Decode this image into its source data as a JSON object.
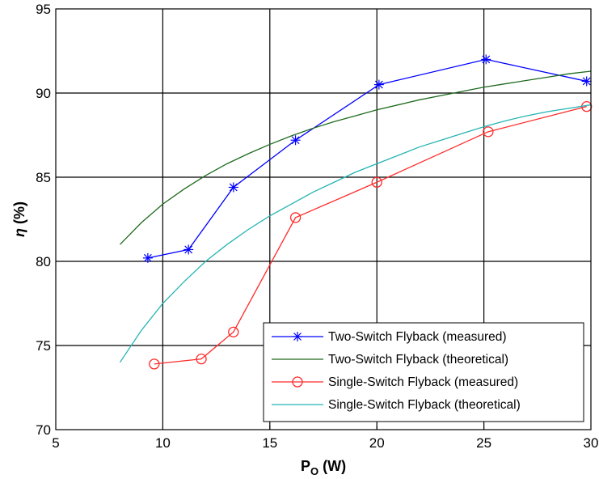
{
  "chart_data": {
    "type": "line",
    "title": "",
    "xlabel": {
      "main": "P",
      "sub": "O",
      "unit": " (W)"
    },
    "ylabel": {
      "symbol": "η",
      "unit": " (%)"
    },
    "xlim": [
      5,
      30
    ],
    "ylim": [
      70,
      95
    ],
    "xticks": [
      5,
      10,
      15,
      20,
      25,
      30
    ],
    "yticks": [
      70,
      75,
      80,
      85,
      90,
      95
    ],
    "grid": true,
    "legend_position": "bottom-right",
    "series": [
      {
        "name": "Two-Switch Flyback (measured)",
        "color": "#0000ff",
        "marker": "asterisk",
        "x": [
          9.3,
          11.2,
          13.3,
          16.2,
          20.1,
          25.1,
          29.8
        ],
        "y": [
          80.2,
          80.7,
          84.4,
          87.2,
          90.5,
          92.0,
          90.7
        ]
      },
      {
        "name": "Two-Switch Flyback (theoretical)",
        "color": "#1e6b1e",
        "marker": "none",
        "x": [
          8,
          9,
          10,
          11,
          12,
          13,
          14,
          15,
          16,
          17,
          18,
          19,
          20,
          21,
          22,
          23,
          24,
          25,
          26,
          27,
          28,
          29,
          30
        ],
        "y": [
          81.0,
          82.3,
          83.4,
          84.3,
          85.1,
          85.8,
          86.4,
          86.95,
          87.45,
          87.9,
          88.3,
          88.65,
          89.0,
          89.3,
          89.6,
          89.85,
          90.1,
          90.35,
          90.55,
          90.75,
          90.95,
          91.15,
          91.3
        ]
      },
      {
        "name": "Single-Switch Flyback (measured)",
        "color": "#ff2a2a",
        "marker": "circle",
        "x": [
          9.6,
          11.8,
          13.3,
          16.2,
          20.0,
          25.2,
          29.8
        ],
        "y": [
          73.9,
          74.2,
          75.8,
          82.6,
          84.7,
          87.7,
          89.2
        ]
      },
      {
        "name": "Single-Switch Flyback (theoretical)",
        "color": "#26b3b3",
        "marker": "none",
        "x": [
          8,
          9,
          10,
          11,
          12,
          13,
          14,
          15,
          16,
          17,
          18,
          19,
          20,
          21,
          22,
          23,
          24,
          25,
          26,
          27,
          28,
          29,
          30
        ],
        "y": [
          74.0,
          75.9,
          77.5,
          78.8,
          80.0,
          81.0,
          81.9,
          82.7,
          83.4,
          84.1,
          84.7,
          85.3,
          85.8,
          86.3,
          86.8,
          87.2,
          87.6,
          88.0,
          88.35,
          88.65,
          88.9,
          89.1,
          89.3
        ]
      }
    ]
  }
}
